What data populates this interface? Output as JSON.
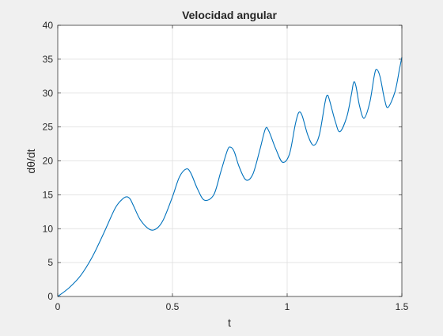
{
  "chart_data": {
    "type": "line",
    "title": "Velocidad angular",
    "xlabel": "t",
    "ylabel": "dθ/dt",
    "xlim": [
      0,
      1.5
    ],
    "ylim": [
      0,
      40
    ],
    "grid": true,
    "xticks": [
      0,
      0.5,
      1,
      1.5
    ],
    "xtick_labels": [
      "0",
      "0.5",
      "1",
      "1.5"
    ],
    "yticks": [
      0,
      5,
      10,
      15,
      20,
      25,
      30,
      35,
      40
    ],
    "ytick_labels": [
      "0",
      "5",
      "10",
      "15",
      "20",
      "25",
      "30",
      "35",
      "40"
    ],
    "line_color": "#0072bd",
    "series": [
      {
        "x": [
          0,
          0.05,
          0.1,
          0.15,
          0.2,
          0.25,
          0.28,
          0.3,
          0.315,
          0.33,
          0.36,
          0.4,
          0.43,
          0.46,
          0.5,
          0.53,
          0.56,
          0.58,
          0.61,
          0.64,
          0.68,
          0.71,
          0.74,
          0.755,
          0.77,
          0.79,
          0.82,
          0.85,
          0.88,
          0.905,
          0.92,
          0.95,
          0.98,
          1.01,
          1.035,
          1.05,
          1.065,
          1.09,
          1.115,
          1.14,
          1.165,
          1.175,
          1.185,
          1.21,
          1.23,
          1.26,
          1.28,
          1.29,
          1.3,
          1.315,
          1.335,
          1.36,
          1.38,
          1.39,
          1.405,
          1.425,
          1.44,
          1.47,
          1.49,
          1.5
        ],
        "y": [
          0,
          1.3,
          3.1,
          5.8,
          9.3,
          13.0,
          14.3,
          14.7,
          14.4,
          13.4,
          11.3,
          9.9,
          10.0,
          11.3,
          14.7,
          17.6,
          18.8,
          18.2,
          15.8,
          14.2,
          15.0,
          18.3,
          21.6,
          22.0,
          21.3,
          19.2,
          17.2,
          18.0,
          21.5,
          24.7,
          24.4,
          21.8,
          19.8,
          21.0,
          25.3,
          27.1,
          26.7,
          23.8,
          22.3,
          23.8,
          28.6,
          29.7,
          28.9,
          25.8,
          24.3,
          26.5,
          29.8,
          31.6,
          31.0,
          28.2,
          26.3,
          28.6,
          32.6,
          33.5,
          32.4,
          29.0,
          27.9,
          30.2,
          33.6,
          35.3
        ]
      }
    ]
  }
}
